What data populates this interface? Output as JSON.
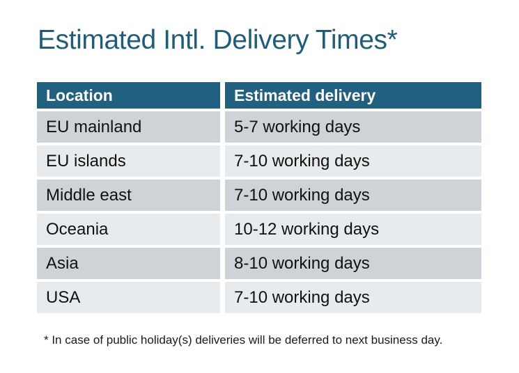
{
  "page": {
    "title": "Estimated Intl. Delivery Times*",
    "footnote": "* In case of public holiday(s) deliveries will be deferred to next business day."
  },
  "chart_data": {
    "type": "table",
    "title": "Estimated Intl. Delivery Times*",
    "columns": [
      "Location",
      "Estimated delivery"
    ],
    "rows": [
      [
        "EU mainland",
        "5-7 working days"
      ],
      [
        "EU islands",
        "7-10 working days"
      ],
      [
        "Middle east",
        "7-10 working days"
      ],
      [
        "Oceania",
        "10-12 working days"
      ],
      [
        "Asia",
        "8-10 working days"
      ],
      [
        "USA",
        "7-10 working days"
      ]
    ],
    "footnote": "* In case of public holiday(s) deliveries will be deferred to next business day.",
    "layout": {
      "striped": true,
      "header_position": "top",
      "grid": "off"
    },
    "colors": {
      "accent": "#22607F",
      "header_text": "#FFFFFF",
      "title": "#1E5C7A",
      "row_dark": "#CED3D8",
      "row_light": "#E8EBED",
      "body_text": "#111111",
      "background": "#FFFFFF"
    }
  }
}
